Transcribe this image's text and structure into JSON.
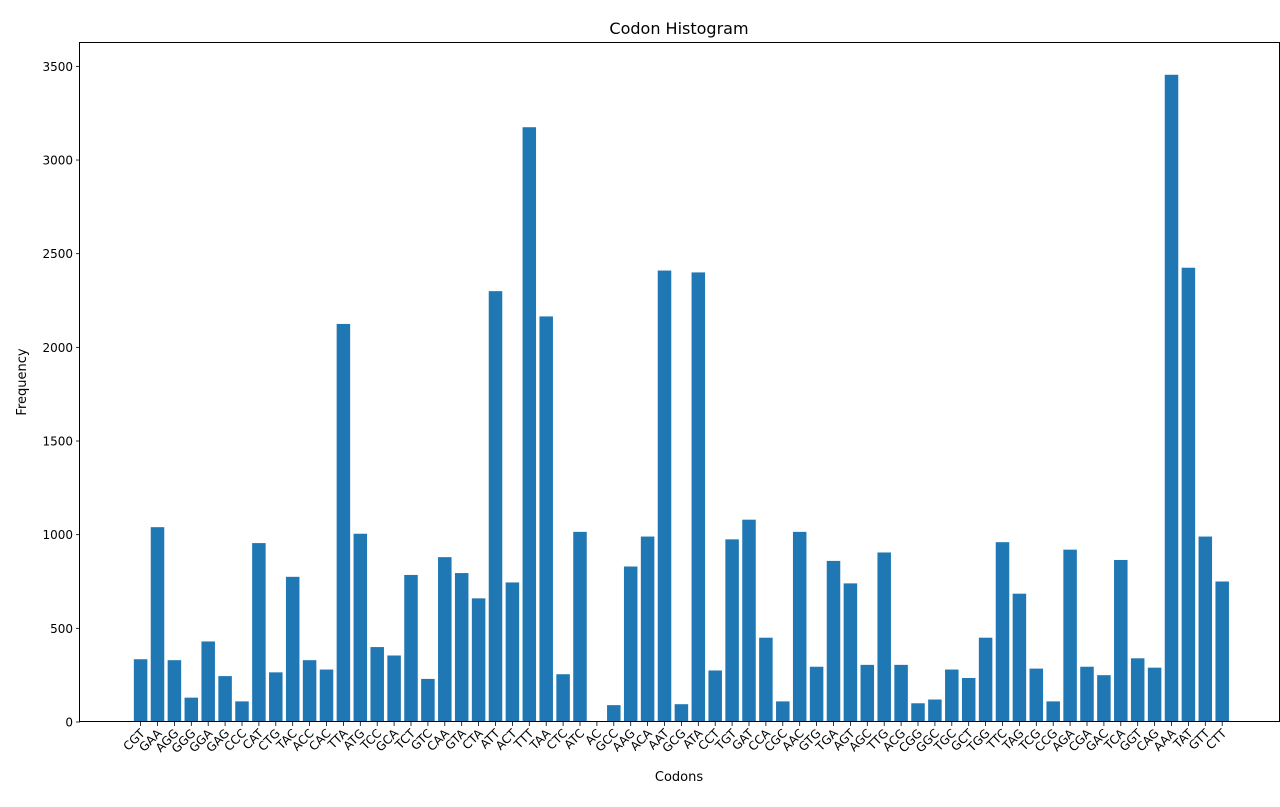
{
  "chart_data": {
    "type": "bar",
    "title": "Codon Histogram",
    "xlabel": "Codons",
    "ylabel": "Frequency",
    "ylim": [
      0,
      3630
    ],
    "yticks": [
      0,
      500,
      1000,
      1500,
      2000,
      2500,
      3000,
      3500
    ],
    "grid": false,
    "bar_color": "#1f77b4",
    "categories": [
      "CGT",
      "GAA",
      "AGG",
      "GGG",
      "GGA",
      "GAG",
      "CCC",
      "CAT",
      "CTG",
      "TAC",
      "ACC",
      "CAC",
      "TTA",
      "ATG",
      "TCC",
      "GCA",
      "TCT",
      "GTC",
      "CAA",
      "GTA",
      "CTA",
      "ATT",
      "ACT",
      "TTT",
      "TAA",
      "CTC",
      "ATC",
      "AC",
      "GCC",
      "AAG",
      "ACA",
      "AAT",
      "GCG",
      "ATA",
      "CCT",
      "TGT",
      "GAT",
      "CCA",
      "CGC",
      "AAC",
      "GTG",
      "TGA",
      "AGT",
      "AGC",
      "TTG",
      "ACG",
      "CGG",
      "GGC",
      "TGC",
      "GCT",
      "TGG",
      "TTC",
      "TAG",
      "TCG",
      "CCG",
      "AGA",
      "CGA",
      "GAC",
      "TCA",
      "GGT",
      "CAG",
      "AAA",
      "TAT",
      "GTT",
      "CTT"
    ],
    "values": [
      335,
      1040,
      330,
      130,
      430,
      245,
      110,
      955,
      265,
      775,
      330,
      280,
      2125,
      1005,
      400,
      355,
      785,
      230,
      880,
      795,
      660,
      2300,
      745,
      3175,
      2165,
      255,
      1015,
      0,
      90,
      830,
      990,
      2410,
      95,
      2400,
      275,
      975,
      1080,
      450,
      110,
      1015,
      295,
      860,
      740,
      305,
      905,
      305,
      100,
      120,
      280,
      235,
      450,
      960,
      685,
      285,
      110,
      920,
      295,
      250,
      865,
      340,
      290,
      3455,
      2425,
      990,
      750
    ]
  }
}
